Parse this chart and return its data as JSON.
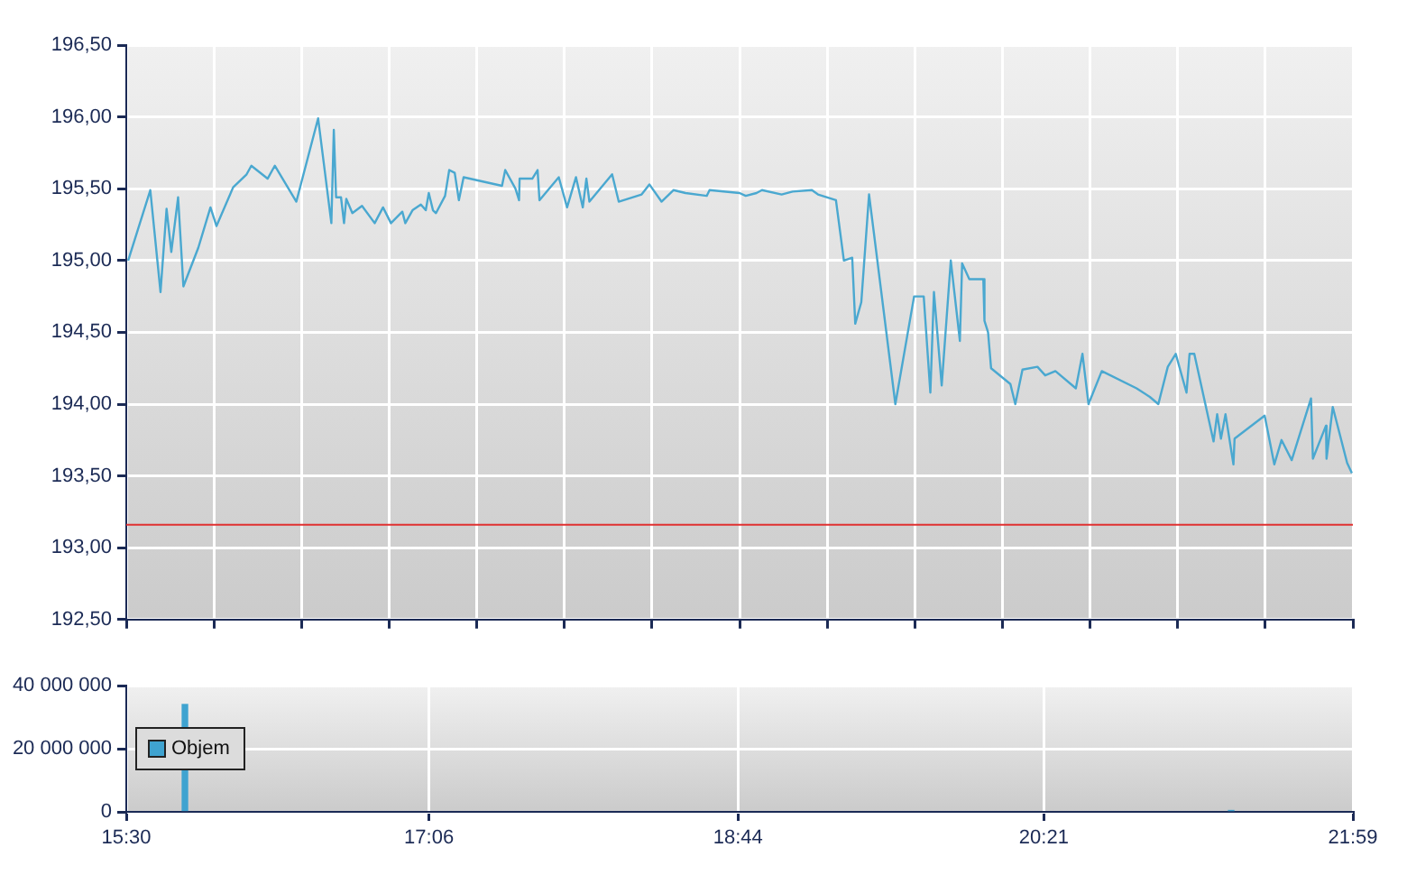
{
  "chart_data": [
    {
      "type": "line",
      "color": "#4aa8d0",
      "tick_labels": "y",
      "grid": true,
      "x": [
        15.51,
        15.627,
        15.681,
        15.713,
        15.738,
        15.774,
        15.802,
        15.881,
        15.945,
        15.977,
        16.065,
        16.136,
        16.161,
        16.247,
        16.285,
        16.399,
        16.514,
        16.584,
        16.597,
        16.609,
        16.635,
        16.651,
        16.663,
        16.695,
        16.746,
        16.813,
        16.857,
        16.899,
        16.959,
        16.975,
        17.013,
        17.057,
        17.083,
        17.099,
        17.121,
        17.137,
        17.185,
        17.207,
        17.236,
        17.258,
        17.283,
        17.486,
        17.503,
        17.557,
        17.576,
        17.579,
        17.646,
        17.674,
        17.684,
        17.786,
        17.83,
        17.877,
        17.913,
        17.932,
        17.948,
        18.068,
        18.103,
        18.224,
        18.265,
        18.329,
        18.392,
        18.456,
        18.568,
        18.583,
        18.742,
        18.774,
        18.831,
        18.86,
        18.964,
        19.022,
        19.124,
        19.156,
        19.251,
        19.293,
        19.337,
        19.353,
        19.385,
        19.426,
        19.565,
        19.664,
        19.715,
        19.75,
        19.769,
        19.81,
        19.858,
        19.906,
        19.918,
        19.956,
        20.03,
        20.036,
        20.055,
        20.071,
        20.173,
        20.199,
        20.237,
        20.316,
        20.357,
        20.411,
        20.519,
        20.554,
        20.586,
        20.656,
        20.84,
        20.91,
        20.955,
        21.005,
        21.047,
        21.104,
        21.12,
        21.145,
        21.247,
        21.266,
        21.286,
        21.31,
        21.352,
        21.358,
        21.517,
        21.568,
        21.606,
        21.66,
        21.762,
        21.772,
        21.841,
        21.844,
        21.877,
        21.953,
        21.978
      ],
      "values": [
        195.0,
        195.49,
        194.78,
        195.36,
        195.06,
        195.44,
        194.82,
        195.09,
        195.37,
        195.24,
        195.51,
        195.6,
        195.66,
        195.57,
        195.66,
        195.41,
        195.99,
        195.26,
        195.91,
        195.44,
        195.44,
        195.26,
        195.43,
        195.33,
        195.38,
        195.26,
        195.37,
        195.26,
        195.34,
        195.26,
        195.35,
        195.39,
        195.35,
        195.47,
        195.35,
        195.33,
        195.45,
        195.63,
        195.61,
        195.42,
        195.58,
        195.52,
        195.63,
        195.5,
        195.42,
        195.57,
        195.57,
        195.63,
        195.42,
        195.58,
        195.37,
        195.58,
        195.37,
        195.57,
        195.41,
        195.6,
        195.41,
        195.46,
        195.53,
        195.41,
        195.49,
        195.47,
        195.45,
        195.49,
        195.47,
        195.45,
        195.47,
        195.49,
        195.46,
        195.48,
        195.49,
        195.46,
        195.42,
        195.0,
        195.02,
        194.56,
        194.71,
        195.46,
        194.0,
        194.75,
        194.75,
        194.08,
        194.78,
        194.13,
        195.0,
        194.44,
        194.98,
        194.87,
        194.87,
        194.58,
        194.5,
        194.25,
        194.14,
        194.0,
        194.24,
        194.26,
        194.2,
        194.23,
        194.11,
        194.35,
        194.0,
        194.23,
        194.11,
        194.05,
        194.0,
        194.26,
        194.35,
        194.08,
        194.35,
        194.35,
        193.74,
        193.93,
        193.76,
        193.93,
        193.58,
        193.76,
        193.92,
        193.58,
        193.75,
        193.61,
        194.04,
        193.62,
        193.85,
        193.62,
        193.98,
        193.59,
        193.52
      ],
      "xlim": [
        15.5,
        21.9833
      ],
      "xticks": [
        {
          "value": 15.5,
          "label": null
        },
        {
          "value": 15.9631,
          "label": null
        },
        {
          "value": 16.4262,
          "label": null
        },
        {
          "value": 16.8893,
          "label": null
        },
        {
          "value": 17.3524,
          "label": null
        },
        {
          "value": 17.8155,
          "label": null
        },
        {
          "value": 18.2786,
          "label": null
        },
        {
          "value": 18.7417,
          "label": null
        },
        {
          "value": 19.2048,
          "label": null
        },
        {
          "value": 19.6679,
          "label": null
        },
        {
          "value": 20.131,
          "label": null
        },
        {
          "value": 20.5941,
          "label": null
        },
        {
          "value": 21.0572,
          "label": null
        },
        {
          "value": 21.5203,
          "label": null
        },
        {
          "value": 21.9833,
          "label": null
        }
      ],
      "ylim": [
        192.5,
        196.5
      ],
      "yticks": [
        {
          "value": 192.5,
          "label": "192,50"
        },
        {
          "value": 193,
          "label": "193,00"
        },
        {
          "value": 193.5,
          "label": "193,50"
        },
        {
          "value": 194,
          "label": "194,00"
        },
        {
          "value": 194.5,
          "label": "194,50"
        },
        {
          "value": 195,
          "label": "195,00"
        },
        {
          "value": 195.5,
          "label": "195,50"
        },
        {
          "value": 196,
          "label": "196,00"
        },
        {
          "value": 196.5,
          "label": "196,50"
        }
      ],
      "ref_lines": [
        {
          "axis": "y",
          "value": 193.16,
          "color": "#e03030"
        }
      ]
    },
    {
      "type": "bar",
      "grid": true,
      "legend": "left",
      "x": [
        15.81,
        21.34
      ],
      "series": [
        {
          "name": "Objem",
          "color": "#3fa3d0",
          "values": [
            34000000,
            400000
          ]
        }
      ],
      "xlim": [
        15.5,
        21.9833
      ],
      "xticks": [
        {
          "value": 15.5,
          "label": "15:30"
        },
        {
          "value": 17.1,
          "label": "17:06"
        },
        {
          "value": 18.7333,
          "label": "18:44"
        },
        {
          "value": 20.35,
          "label": "20:21"
        },
        {
          "value": 21.9833,
          "label": "21:59"
        }
      ],
      "ylim": [
        0,
        40000000
      ],
      "yticks": [
        {
          "value": 0,
          "label": "0"
        },
        {
          "value": 20000000,
          "label": "20 000 000"
        },
        {
          "value": 40000000,
          "label": "40 000 000"
        }
      ]
    }
  ]
}
